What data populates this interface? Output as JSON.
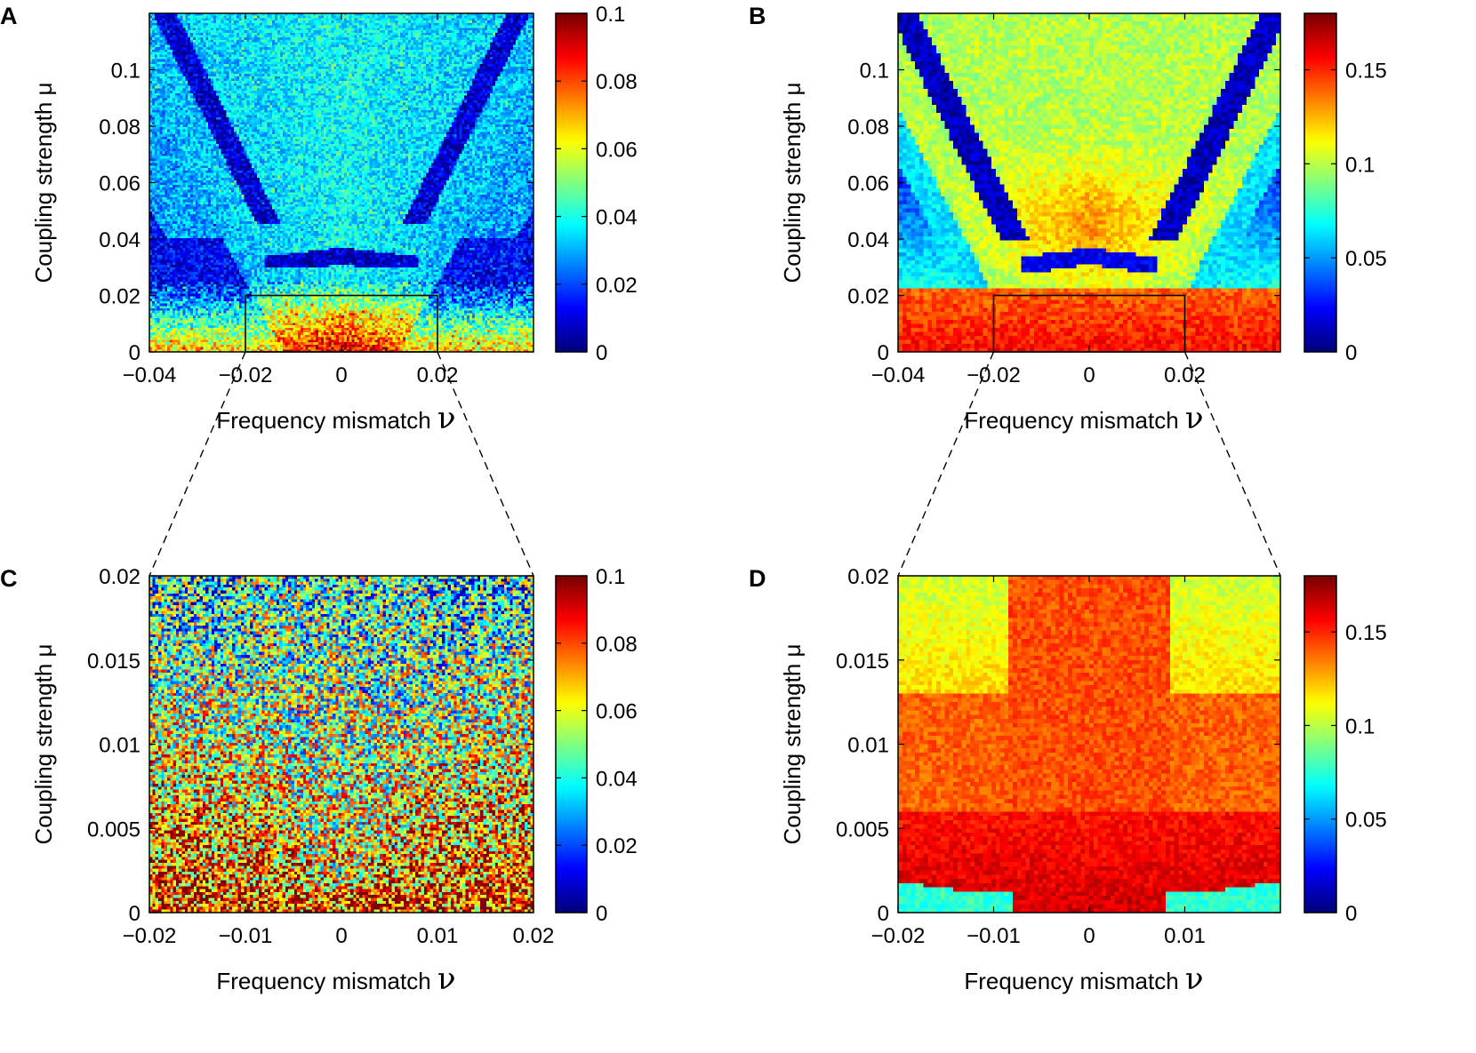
{
  "figure": {
    "description_type": "four-panel heatmap figure",
    "zoom_connectors": [
      {
        "from_panel": "A",
        "to_panel": "C"
      },
      {
        "from_panel": "B",
        "to_panel": "D"
      }
    ]
  },
  "chart_data": [
    {
      "panel_label": "A",
      "type": "heatmap",
      "xlabel_text": "Frequency mismatch ",
      "xlabel_symbol": "ν",
      "ylabel": "Coupling strength μ",
      "xlim": [
        -0.04,
        0.04
      ],
      "ylim": [
        0,
        0.12
      ],
      "xticks": [
        -0.04,
        -0.02,
        0,
        0.02
      ],
      "xtick_labels": [
        "−0.04",
        "−0.02",
        "0",
        "0.02"
      ],
      "yticks": [
        0,
        0.02,
        0.04,
        0.06,
        0.08,
        0.1
      ],
      "ytick_labels": [
        "0",
        "0.02",
        "0.04",
        "0.06",
        "0.08",
        "0.1"
      ],
      "colorbar": {
        "min": 0,
        "max": 0.1,
        "colormap": "jet",
        "ticks": [
          0,
          0.02,
          0.04,
          0.06,
          0.08,
          0.1
        ],
        "tick_labels": [
          "0",
          "0.02",
          "0.04",
          "0.06",
          "0.08",
          "0.1"
        ]
      },
      "zoom_box": {
        "x": [
          -0.02,
          0.02
        ],
        "y": [
          0,
          0.02
        ]
      },
      "grid": {
        "cols": 150,
        "rows": 140,
        "noise": 0.55,
        "pattern": "A"
      }
    },
    {
      "panel_label": "B",
      "type": "heatmap",
      "xlabel_text": "Frequency mismatch ",
      "xlabel_symbol": "ν",
      "ylabel": "Coupling strength μ",
      "xlim": [
        -0.04,
        0.04
      ],
      "ylim": [
        0,
        0.12
      ],
      "xticks": [
        -0.04,
        -0.02,
        0,
        0.02
      ],
      "xtick_labels": [
        "−0.04",
        "−0.02",
        "0",
        "0.02"
      ],
      "yticks": [
        0,
        0.02,
        0.04,
        0.06,
        0.08,
        0.1
      ],
      "ytick_labels": [
        "0",
        "0.02",
        "0.04",
        "0.06",
        "0.08",
        "0.1"
      ],
      "colorbar": {
        "min": 0,
        "max": 0.18,
        "colormap": "jet",
        "ticks": [
          0,
          0.05,
          0.1,
          0.15
        ],
        "tick_labels": [
          "0",
          "0.05",
          "0.1",
          "0.15"
        ]
      },
      "zoom_box": {
        "x": [
          -0.02,
          0.02
        ],
        "y": [
          0,
          0.02
        ]
      },
      "grid": {
        "cols": 90,
        "rows": 85,
        "noise": 0.12,
        "pattern": "B"
      }
    },
    {
      "panel_label": "C",
      "type": "heatmap",
      "xlabel_text": "Frequency mismatch ",
      "xlabel_symbol": "ν",
      "ylabel": "Coupling strength μ",
      "xlim": [
        -0.02,
        0.02
      ],
      "ylim": [
        0,
        0.02
      ],
      "xticks": [
        -0.02,
        -0.01,
        0,
        0.01,
        0.02
      ],
      "xtick_labels": [
        "−0.02",
        "−0.01",
        "0",
        "0.01",
        "0.02"
      ],
      "yticks": [
        0,
        0.005,
        0.01,
        0.015,
        0.02
      ],
      "ytick_labels": [
        "0",
        "0.005",
        "0.01",
        "0.015",
        "0.02"
      ],
      "colorbar": {
        "min": 0,
        "max": 0.1,
        "colormap": "jet",
        "ticks": [
          0,
          0.02,
          0.04,
          0.06,
          0.08,
          0.1
        ],
        "tick_labels": [
          "0",
          "0.02",
          "0.04",
          "0.06",
          "0.08",
          "0.1"
        ]
      },
      "grid": {
        "cols": 130,
        "rows": 115,
        "noise": 0.6,
        "pattern": "C"
      }
    },
    {
      "panel_label": "D",
      "type": "heatmap",
      "xlabel_text": "Frequency mismatch ",
      "xlabel_symbol": "ν",
      "ylabel": "Coupling strength μ",
      "xlim": [
        -0.02,
        0.02
      ],
      "ylim": [
        0,
        0.02
      ],
      "xticks": [
        -0.02,
        -0.01,
        0,
        0.01
      ],
      "xtick_labels": [
        "−0.02",
        "−0.01",
        "0",
        "0.01"
      ],
      "yticks": [
        0,
        0.005,
        0.01,
        0.015,
        0.02
      ],
      "ytick_labels": [
        "0",
        "0.005",
        "0.01",
        "0.015",
        "0.02"
      ],
      "colorbar": {
        "min": 0,
        "max": 0.18,
        "colormap": "jet",
        "ticks": [
          0,
          0.05,
          0.1,
          0.15
        ],
        "tick_labels": [
          "0",
          "0.05",
          "0.1",
          "0.15"
        ]
      },
      "grid": {
        "cols": 90,
        "rows": 80,
        "noise": 0.1,
        "pattern": "D"
      }
    }
  ]
}
